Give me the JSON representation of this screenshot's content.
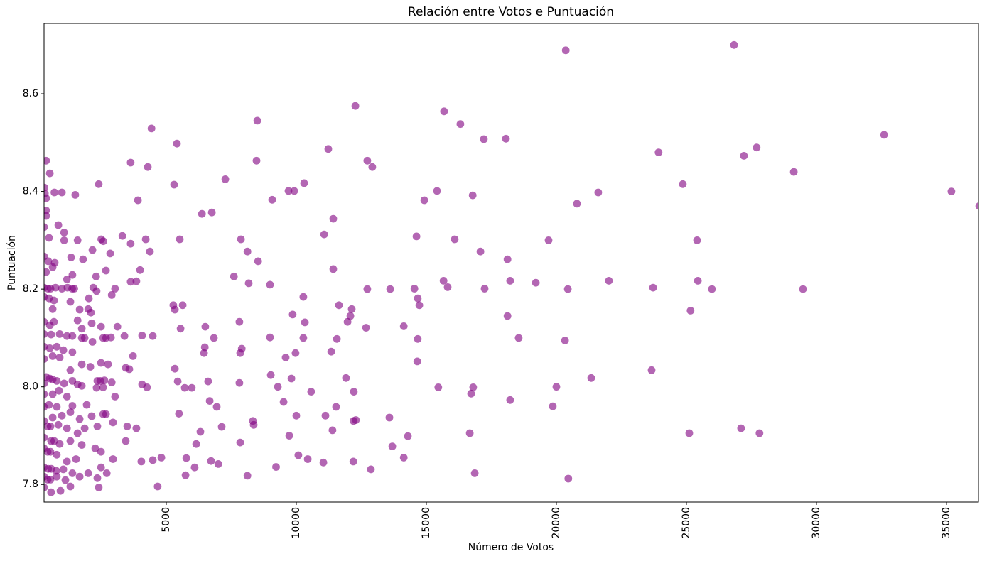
{
  "title": "Relación entre Votos e Puntuación",
  "chart_data": {
    "type": "scatter",
    "title": "Relación entre Votos e Puntuación",
    "xlabel": "Número de Votos",
    "ylabel": "Puntuación",
    "x_ticks": [
      5000,
      10000,
      15000,
      20000,
      25000,
      30000,
      35000
    ],
    "y_ticks": [
      7.8,
      8.0,
      8.2,
      8.4,
      8.6
    ],
    "xlim": [
      300,
      36230
    ],
    "ylim": [
      7.764,
      8.744
    ],
    "grid": false,
    "legend": "none",
    "marker_color": "#800080",
    "marker_alpha": 0.6,
    "marker_radius": 5.4,
    "points": [
      [
        27700,
        8.49
      ],
      [
        32600,
        8.516
      ],
      [
        29130,
        8.44
      ],
      [
        35190,
        8.4
      ],
      [
        36260,
        8.37
      ],
      [
        29480,
        8.2
      ],
      [
        27810,
        7.905
      ],
      [
        20360,
        8.689
      ],
      [
        26830,
        8.7
      ],
      [
        23930,
        8.48
      ],
      [
        27210,
        8.473
      ],
      [
        24860,
        8.415
      ],
      [
        21610,
        8.398
      ],
      [
        20790,
        8.375
      ],
      [
        19700,
        8.3
      ],
      [
        25410,
        8.3
      ],
      [
        19210,
        8.213
      ],
      [
        20440,
        8.2
      ],
      [
        22020,
        8.217
      ],
      [
        23720,
        8.203
      ],
      [
        25440,
        8.217
      ],
      [
        25980,
        8.2
      ],
      [
        25160,
        8.156
      ],
      [
        18550,
        8.1
      ],
      [
        20330,
        8.095
      ],
      [
        23660,
        8.034
      ],
      [
        21340,
        8.018
      ],
      [
        20000,
        8.0
      ],
      [
        19860,
        7.96
      ],
      [
        25110,
        7.905
      ],
      [
        27100,
        7.915
      ],
      [
        20460,
        7.812
      ],
      [
        12270,
        8.575
      ],
      [
        15680,
        8.564
      ],
      [
        16310,
        8.538
      ],
      [
        17210,
        8.507
      ],
      [
        18060,
        8.508
      ],
      [
        11230,
        8.487
      ],
      [
        12730,
        8.463
      ],
      [
        12920,
        8.45
      ],
      [
        10300,
        8.417
      ],
      [
        9700,
        8.401
      ],
      [
        9920,
        8.401
      ],
      [
        15410,
        8.401
      ],
      [
        14920,
        8.382
      ],
      [
        16780,
        8.392
      ],
      [
        11420,
        8.344
      ],
      [
        11070,
        8.312
      ],
      [
        14620,
        8.308
      ],
      [
        16090,
        8.302
      ],
      [
        17080,
        8.277
      ],
      [
        18120,
        8.261
      ],
      [
        11420,
        8.241
      ],
      [
        15660,
        8.217
      ],
      [
        15820,
        8.204
      ],
      [
        12730,
        8.2
      ],
      [
        13610,
        8.2
      ],
      [
        14540,
        8.201
      ],
      [
        17240,
        8.201
      ],
      [
        18220,
        8.217
      ],
      [
        10270,
        8.184
      ],
      [
        14670,
        8.181
      ],
      [
        14730,
        8.167
      ],
      [
        11640,
        8.167
      ],
      [
        12130,
        8.159
      ],
      [
        12080,
        8.145
      ],
      [
        11970,
        8.133
      ],
      [
        9860,
        8.148
      ],
      [
        10330,
        8.132
      ],
      [
        18120,
        8.145
      ],
      [
        12680,
        8.121
      ],
      [
        14130,
        8.124
      ],
      [
        10270,
        8.1
      ],
      [
        11560,
        8.098
      ],
      [
        14670,
        8.098
      ],
      [
        11340,
        8.072
      ],
      [
        9590,
        8.06
      ],
      [
        9970,
        8.069
      ],
      [
        14650,
        8.052
      ],
      [
        9810,
        8.017
      ],
      [
        11910,
        8.018
      ],
      [
        9290,
        8.0
      ],
      [
        10570,
        7.99
      ],
      [
        12210,
        7.99
      ],
      [
        15460,
        7.999
      ],
      [
        16800,
        7.999
      ],
      [
        16720,
        7.986
      ],
      [
        18220,
        7.973
      ],
      [
        9510,
        7.969
      ],
      [
        11530,
        7.959
      ],
      [
        10000,
        7.941
      ],
      [
        11120,
        7.941
      ],
      [
        13580,
        7.937
      ],
      [
        12200,
        7.93
      ],
      [
        12290,
        7.932
      ],
      [
        11390,
        7.911
      ],
      [
        16670,
        7.905
      ],
      [
        9730,
        7.9
      ],
      [
        14290,
        7.899
      ],
      [
        13690,
        7.878
      ],
      [
        10080,
        7.86
      ],
      [
        10440,
        7.852
      ],
      [
        14130,
        7.855
      ],
      [
        11040,
        7.845
      ],
      [
        12190,
        7.847
      ],
      [
        12870,
        7.831
      ],
      [
        9220,
        7.836
      ],
      [
        16860,
        7.823
      ],
      [
        4430,
        8.529
      ],
      [
        380,
        8.463
      ],
      [
        3630,
        8.459
      ],
      [
        4290,
        8.45
      ],
      [
        520,
        8.437
      ],
      [
        2400,
        8.415
      ],
      [
        310,
        8.408
      ],
      [
        700,
        8.398
      ],
      [
        985,
        8.398
      ],
      [
        380,
        8.386
      ],
      [
        1500,
        8.393
      ],
      [
        3910,
        8.382
      ],
      [
        330,
        8.396
      ],
      [
        380,
        8.361
      ],
      [
        380,
        8.35
      ],
      [
        850,
        8.331
      ],
      [
        300,
        8.327
      ],
      [
        1070,
        8.316
      ],
      [
        490,
        8.305
      ],
      [
        1070,
        8.3
      ],
      [
        1590,
        8.3
      ],
      [
        2500,
        8.302
      ],
      [
        2580,
        8.298
      ],
      [
        3310,
        8.309
      ],
      [
        3630,
        8.293
      ],
      [
        4210,
        8.302
      ],
      [
        4370,
        8.277
      ],
      [
        2160,
        8.28
      ],
      [
        2840,
        8.273
      ],
      [
        1340,
        8.265
      ],
      [
        1800,
        8.261
      ],
      [
        465,
        8.257
      ],
      [
        710,
        8.254
      ],
      [
        300,
        8.267
      ],
      [
        8500,
        8.545
      ],
      [
        5410,
        8.498
      ],
      [
        8470,
        8.463
      ],
      [
        7270,
        8.425
      ],
      [
        5300,
        8.414
      ],
      [
        9070,
        8.383
      ],
      [
        6370,
        8.354
      ],
      [
        6750,
        8.357
      ],
      [
        5520,
        8.302
      ],
      [
        7870,
        8.302
      ],
      [
        8120,
        8.277
      ],
      [
        8530,
        8.257
      ],
      [
        630,
        8.245
      ],
      [
        380,
        8.235
      ],
      [
        1390,
        8.229
      ],
      [
        2680,
        8.238
      ],
      [
        2300,
        8.226
      ],
      [
        3990,
        8.239
      ],
      [
        3850,
        8.216
      ],
      [
        3630,
        8.215
      ],
      [
        1180,
        8.22
      ],
      [
        300,
        8.203
      ],
      [
        450,
        8.201
      ],
      [
        550,
        8.201
      ],
      [
        740,
        8.203
      ],
      [
        985,
        8.201
      ],
      [
        1200,
        8.203
      ],
      [
        1380,
        8.201
      ],
      [
        1460,
        8.201
      ],
      [
        2190,
        8.203
      ],
      [
        2320,
        8.196
      ],
      [
        3030,
        8.201
      ],
      [
        2900,
        8.188
      ],
      [
        490,
        8.181
      ],
      [
        300,
        8.184
      ],
      [
        680,
        8.177
      ],
      [
        1310,
        8.174
      ],
      [
        2020,
        8.181
      ],
      [
        630,
        8.159
      ],
      [
        1670,
        8.158
      ],
      [
        2000,
        8.159
      ],
      [
        2100,
        8.152
      ],
      [
        680,
        8.133
      ],
      [
        520,
        8.126
      ],
      [
        300,
        8.133
      ],
      [
        1590,
        8.136
      ],
      [
        2130,
        8.13
      ],
      [
        2490,
        8.123
      ],
      [
        1750,
        8.119
      ],
      [
        3120,
        8.123
      ],
      [
        900,
        8.108
      ],
      [
        570,
        8.107
      ],
      [
        300,
        8.108
      ],
      [
        1180,
        8.104
      ],
      [
        1390,
        8.104
      ],
      [
        1750,
        8.1
      ],
      [
        1860,
        8.1
      ],
      [
        2160,
        8.092
      ],
      [
        2570,
        8.1
      ],
      [
        2680,
        8.1
      ],
      [
        2870,
        8.101
      ],
      [
        3390,
        8.104
      ],
      [
        4070,
        8.105
      ],
      [
        4480,
        8.104
      ],
      [
        300,
        8.082
      ],
      [
        520,
        8.079
      ],
      [
        790,
        8.082
      ],
      [
        1040,
        8.075
      ],
      [
        630,
        8.063
      ],
      [
        900,
        8.06
      ],
      [
        1390,
        8.071
      ],
      [
        300,
        8.057
      ],
      [
        1750,
        8.046
      ],
      [
        2080,
        8.041
      ],
      [
        2490,
        8.049
      ],
      [
        2760,
        8.046
      ],
      [
        3720,
        8.063
      ],
      [
        3580,
        8.036
      ],
      [
        3440,
        8.039
      ],
      [
        1310,
        8.034
      ],
      [
        520,
        8.017
      ],
      [
        630,
        8.015
      ],
      [
        380,
        8.02
      ],
      [
        790,
        8.012
      ],
      [
        300,
        8.007
      ],
      [
        1070,
        8.007
      ],
      [
        1390,
        8.012
      ],
      [
        1590,
        8.005
      ],
      [
        1750,
        8.002
      ],
      [
        2350,
        8.012
      ],
      [
        2460,
        8.012
      ],
      [
        2620,
        8.013
      ],
      [
        2900,
        8.009
      ],
      [
        2570,
        7.999
      ],
      [
        2320,
        7.998
      ],
      [
        870,
        7.992
      ],
      [
        630,
        7.985
      ],
      [
        300,
        7.985
      ],
      [
        1180,
        7.98
      ],
      [
        4070,
        8.005
      ],
      [
        4260,
        7.999
      ],
      [
        3030,
        7.98
      ],
      [
        490,
        7.963
      ],
      [
        790,
        7.959
      ],
      [
        300,
        7.959
      ],
      [
        1390,
        7.961
      ],
      [
        1940,
        7.963
      ],
      [
        1310,
        7.948
      ],
      [
        985,
        7.941
      ],
      [
        630,
        7.937
      ],
      [
        1670,
        7.934
      ],
      [
        2130,
        7.94
      ],
      [
        2570,
        7.944
      ],
      [
        2680,
        7.944
      ],
      [
        300,
        7.93
      ],
      [
        440,
        7.919
      ],
      [
        550,
        7.919
      ],
      [
        850,
        7.922
      ],
      [
        1180,
        7.915
      ],
      [
        1860,
        7.915
      ],
      [
        2350,
        7.919
      ],
      [
        2950,
        7.927
      ],
      [
        3500,
        7.919
      ],
      [
        3850,
        7.915
      ],
      [
        1590,
        7.905
      ],
      [
        570,
        7.889
      ],
      [
        690,
        7.889
      ],
      [
        300,
        7.896
      ],
      [
        900,
        7.883
      ],
      [
        1310,
        7.889
      ],
      [
        1750,
        7.881
      ],
      [
        2270,
        7.874
      ],
      [
        2490,
        7.867
      ],
      [
        300,
        7.874
      ],
      [
        440,
        7.867
      ],
      [
        550,
        7.867
      ],
      [
        790,
        7.861
      ],
      [
        1180,
        7.847
      ],
      [
        1530,
        7.852
      ],
      [
        2950,
        7.852
      ],
      [
        3440,
        7.889
      ],
      [
        300,
        7.835
      ],
      [
        460,
        7.832
      ],
      [
        580,
        7.832
      ],
      [
        770,
        7.828
      ],
      [
        1040,
        7.831
      ],
      [
        1390,
        7.823
      ],
      [
        790,
        7.816
      ],
      [
        440,
        7.81
      ],
      [
        550,
        7.81
      ],
      [
        300,
        7.816
      ],
      [
        1120,
        7.809
      ],
      [
        1670,
        7.816
      ],
      [
        2000,
        7.823
      ],
      [
        2490,
        7.835
      ],
      [
        4040,
        7.847
      ],
      [
        4480,
        7.85
      ],
      [
        2350,
        7.813
      ],
      [
        2710,
        7.823
      ],
      [
        930,
        7.787
      ],
      [
        570,
        7.784
      ],
      [
        300,
        7.794
      ],
      [
        1310,
        7.796
      ],
      [
        2400,
        7.794
      ],
      [
        4670,
        7.796
      ],
      [
        7600,
        8.226
      ],
      [
        8170,
        8.212
      ],
      [
        8990,
        8.209
      ],
      [
        5270,
        8.167
      ],
      [
        5630,
        8.167
      ],
      [
        5330,
        8.158
      ],
      [
        7810,
        8.133
      ],
      [
        5550,
        8.119
      ],
      [
        6500,
        8.123
      ],
      [
        6830,
        8.1
      ],
      [
        8990,
        8.101
      ],
      [
        6480,
        8.081
      ],
      [
        6450,
        8.069
      ],
      [
        7900,
        8.078
      ],
      [
        7840,
        8.069
      ],
      [
        5330,
        8.037
      ],
      [
        5440,
        8.011
      ],
      [
        5710,
        7.998
      ],
      [
        5980,
        7.998
      ],
      [
        6610,
        8.011
      ],
      [
        7810,
        8.008
      ],
      [
        9020,
        8.024
      ],
      [
        6670,
        7.971
      ],
      [
        6940,
        7.959
      ],
      [
        5490,
        7.945
      ],
      [
        6310,
        7.908
      ],
      [
        7130,
        7.918
      ],
      [
        8330,
        7.93
      ],
      [
        8360,
        7.922
      ],
      [
        7840,
        7.886
      ],
      [
        6150,
        7.883
      ],
      [
        5770,
        7.854
      ],
      [
        4810,
        7.855
      ],
      [
        6090,
        7.835
      ],
      [
        6720,
        7.848
      ],
      [
        7000,
        7.842
      ],
      [
        5740,
        7.819
      ],
      [
        8120,
        7.818
      ]
    ]
  }
}
